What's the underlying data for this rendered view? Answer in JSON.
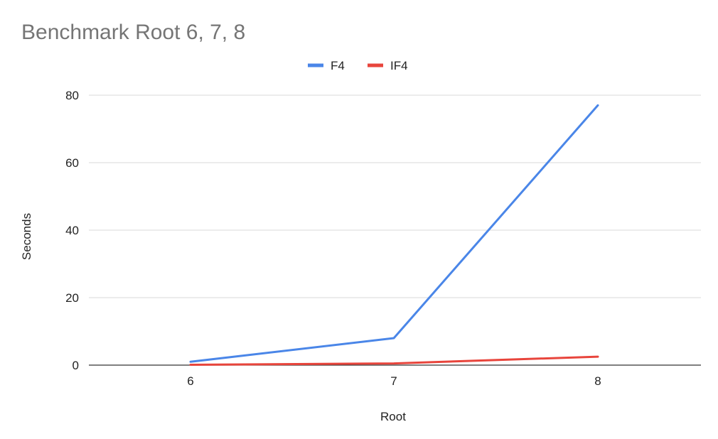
{
  "chart_data": {
    "type": "line",
    "title": "Benchmark Root 6, 7, 8",
    "xlabel": "Root",
    "ylabel": "Seconds",
    "categories": [
      "6",
      "7",
      "8"
    ],
    "series": [
      {
        "name": "F4",
        "color": "#4a86e8",
        "values": [
          1,
          8,
          77
        ]
      },
      {
        "name": "IF4",
        "color": "#e8453c",
        "values": [
          0.1,
          0.5,
          2.5
        ]
      }
    ],
    "ylim": [
      0,
      80
    ],
    "yticks": [
      "0",
      "20",
      "40",
      "60",
      "80"
    ],
    "grid": true,
    "legend_position": "top"
  }
}
